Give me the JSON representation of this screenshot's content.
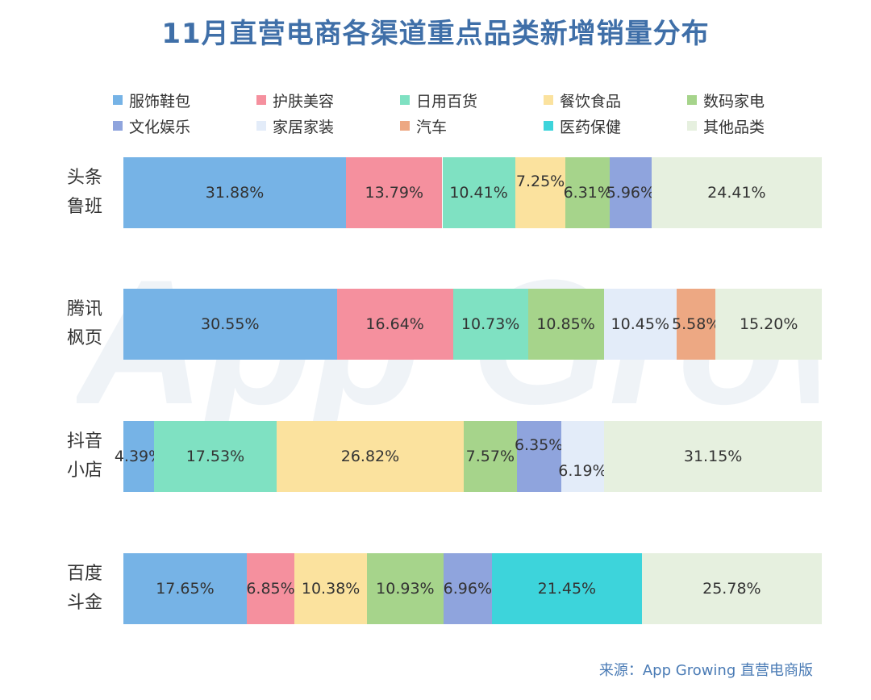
{
  "title": "11月直营电商各渠道重点品类新增销量分布",
  "source": "来源：App Growing 直营电商版",
  "watermark": "App Growing",
  "legend": [
    [
      {
        "name": "服饰鞋包",
        "color": "#76b3e6"
      },
      {
        "name": "护肤美容",
        "color": "#f5909e"
      },
      {
        "name": "日用百货",
        "color": "#7fe1c2"
      },
      {
        "name": "餐饮食品",
        "color": "#fbe29e"
      },
      {
        "name": "数码家电",
        "color": "#a6d48b"
      }
    ],
    [
      {
        "name": "文化娱乐",
        "color": "#8fa4dd"
      },
      {
        "name": "家居家装",
        "color": "#e3ecf9"
      },
      {
        "name": "汽车",
        "color": "#eda883"
      },
      {
        "name": "医药保健",
        "color": "#3dd4db"
      },
      {
        "name": "其他品类",
        "color": "#e6f0df"
      }
    ]
  ],
  "chart_data": {
    "type": "bar",
    "stacked": true,
    "orientation": "horizontal",
    "title": "11月直营电商各渠道重点品类新增销量分布",
    "unit": "%",
    "categories": [
      "头条鲁班",
      "腾讯枫页",
      "抖音小店",
      "百度斗金"
    ],
    "category_lines": [
      [
        "头条",
        "鲁班"
      ],
      [
        "腾讯",
        "枫页"
      ],
      [
        "抖音",
        "小店"
      ],
      [
        "百度",
        "斗金"
      ]
    ],
    "series": [
      {
        "name": "服饰鞋包",
        "values": [
          31.88,
          30.55,
          4.39,
          17.65
        ],
        "labels": [
          "31.88%",
          "30.55%",
          "4.39%",
          "17.65%"
        ]
      },
      {
        "name": "护肤美容",
        "values": [
          13.79,
          16.64,
          null,
          6.85
        ],
        "labels": [
          "13.79%",
          "16.64%",
          "",
          "6.85%"
        ]
      },
      {
        "name": "日用百货",
        "values": [
          10.41,
          10.73,
          17.53,
          null
        ],
        "labels": [
          "10.41%",
          "10.73%",
          "17.53%",
          ""
        ]
      },
      {
        "name": "餐饮食品",
        "values": [
          7.25,
          null,
          26.82,
          10.38
        ],
        "labels": [
          "7.25%",
          "",
          "26.82%",
          "10.38%"
        ]
      },
      {
        "name": "数码家电",
        "values": [
          6.31,
          10.85,
          7.57,
          10.93
        ],
        "labels": [
          "6.31%",
          "10.85%",
          "7.57%",
          "10.93%"
        ]
      },
      {
        "name": "文化娱乐",
        "values": [
          5.96,
          null,
          6.35,
          6.96
        ],
        "labels": [
          "5.96%",
          "",
          "6.35%",
          "6.96%"
        ]
      },
      {
        "name": "家居家装",
        "values": [
          null,
          10.45,
          6.19,
          null
        ],
        "labels": [
          "",
          "10.45%",
          "6.19%",
          ""
        ]
      },
      {
        "name": "汽车",
        "values": [
          null,
          5.58,
          null,
          null
        ],
        "labels": [
          "",
          "5.58%",
          "",
          ""
        ]
      },
      {
        "name": "医药保健",
        "values": [
          null,
          null,
          null,
          21.45
        ],
        "labels": [
          "",
          "",
          "",
          "21.45%"
        ]
      },
      {
        "name": "其他品类",
        "values": [
          24.41,
          15.2,
          31.15,
          25.78
        ],
        "labels": [
          "24.41%",
          "15.20%",
          "31.15%",
          "25.78%"
        ]
      }
    ],
    "label_offsets": [
      [
        0,
        0,
        0,
        0
      ],
      [
        0,
        0,
        0,
        0
      ],
      [
        0,
        0,
        0,
        0
      ],
      [
        -14,
        0,
        0,
        0
      ],
      [
        0,
        0,
        0,
        0
      ],
      [
        0,
        0,
        -14,
        0
      ],
      [
        0,
        0,
        18,
        0
      ],
      [
        0,
        0,
        0,
        0
      ],
      [
        0,
        0,
        0,
        0
      ],
      [
        0,
        0,
        0,
        0
      ]
    ],
    "xlim": [
      0,
      100
    ],
    "legend_position": "top"
  }
}
